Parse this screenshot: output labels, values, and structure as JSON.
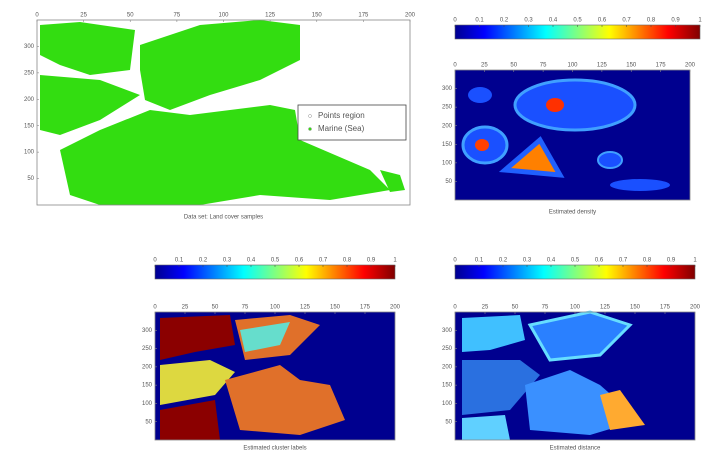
{
  "panels": [
    {
      "xlim": [
        0,
        200
      ],
      "xticks": [
        0,
        25,
        50,
        75,
        100,
        125,
        150,
        175,
        200
      ],
      "ylim": [
        0,
        350
      ],
      "yticks": [
        50,
        100,
        150,
        200,
        250,
        300
      ],
      "legend": [
        "Points region",
        "Marine (Sea)"
      ],
      "caption": "Data set: Land cover samples"
    },
    {
      "xlim": [
        0,
        200
      ],
      "xticks": [
        0,
        25,
        50,
        75,
        100,
        125,
        150,
        175,
        200
      ],
      "ylim": [
        0,
        350
      ],
      "yticks": [
        50,
        100,
        150,
        200,
        250,
        300
      ],
      "caption": "Estimated density"
    },
    {
      "xlim": [
        0,
        200
      ],
      "xticks": [
        0,
        25,
        50,
        75,
        100,
        125,
        150,
        175,
        200
      ],
      "ylim": [
        0,
        350
      ],
      "yticks": [
        50,
        100,
        150,
        200,
        250,
        300
      ],
      "caption": "Estimated cluster labels"
    },
    {
      "xlim": [
        0,
        200
      ],
      "xticks": [
        0,
        25,
        50,
        75,
        100,
        125,
        150,
        175,
        200
      ],
      "ylim": [
        0,
        350
      ],
      "yticks": [
        50,
        100,
        150,
        200,
        250,
        300
      ],
      "caption": "Estimated distance"
    }
  ],
  "colorbars": [
    {
      "lim": [
        0,
        1
      ],
      "ticks": [
        0,
        0.1,
        0.2,
        0.3,
        0.4,
        0.5,
        0.6,
        0.7,
        0.8,
        0.9,
        1
      ]
    },
    {
      "lim": [
        0,
        1
      ],
      "ticks": [
        0,
        0.1,
        0.2,
        0.3,
        0.4,
        0.5,
        0.6,
        0.7,
        0.8,
        0.9,
        1
      ]
    },
    {
      "lim": [
        0,
        1
      ],
      "ticks": [
        0,
        0.1,
        0.2,
        0.3,
        0.4,
        0.5,
        0.6,
        0.7,
        0.8,
        0.9,
        1
      ]
    }
  ]
}
